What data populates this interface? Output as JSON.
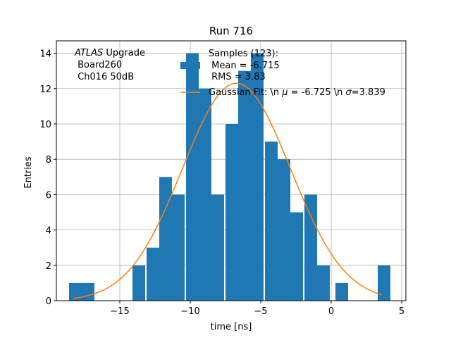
{
  "chart_data": {
    "type": "bar",
    "title": "Run 716",
    "xlabel": "time [ns]",
    "ylabel": "Entries",
    "xlim": [
      -19.5,
      5.3
    ],
    "ylim": [
      0,
      14.7
    ],
    "xticks": [
      -15,
      -10,
      -5,
      0,
      5
    ],
    "xtick_labels": [
      "−15",
      "−10",
      "−5",
      "0",
      "5"
    ],
    "yticks": [
      0,
      2,
      4,
      6,
      8,
      10,
      12,
      14
    ],
    "grid": true,
    "bin_width": 0.9,
    "bins": [
      {
        "x0": -18.6,
        "count": 1
      },
      {
        "x0": -17.7,
        "count": 1
      },
      {
        "x0": -14.1,
        "count": 2
      },
      {
        "x0": -13.1,
        "count": 3
      },
      {
        "x0": -12.2,
        "count": 7
      },
      {
        "x0": -11.3,
        "count": 6
      },
      {
        "x0": -10.3,
        "count": 14
      },
      {
        "x0": -9.4,
        "count": 12
      },
      {
        "x0": -8.5,
        "count": 6
      },
      {
        "x0": -7.5,
        "count": 10
      },
      {
        "x0": -6.6,
        "count": 13
      },
      {
        "x0": -5.7,
        "count": 14
      },
      {
        "x0": -4.7,
        "count": 9
      },
      {
        "x0": -3.8,
        "count": 8
      },
      {
        "x0": -2.9,
        "count": 5
      },
      {
        "x0": -1.9,
        "count": 6
      },
      {
        "x0": -1.0,
        "count": 2
      },
      {
        "x0": 0.3,
        "count": 1
      },
      {
        "x0": 3.3,
        "count": 2
      }
    ],
    "fit": {
      "mu": -6.725,
      "sigma": 3.839,
      "amplitude": 12.3,
      "x_range": [
        -18.3,
        3.6
      ],
      "color": "#ff7f0e"
    },
    "bar_color": "#1f77b4",
    "annotation": {
      "line1_italic": "ATLAS",
      "line1_rest": " Upgrade",
      "line2": " Board260",
      "line3": " Ch016 50dB"
    },
    "legend": {
      "position": "top-center",
      "hist_lines": [
        "Samples (123):",
        " Mean = -6.715",
        " RMS = 3.83"
      ],
      "fit_label_prefix": "Gaussian Fit: \\n ",
      "fit_mu_symbol": "μ",
      "fit_label_mid": " = -6.725 \\n ",
      "fit_sigma_symbol": "σ",
      "fit_label_end": "=3.839"
    }
  }
}
